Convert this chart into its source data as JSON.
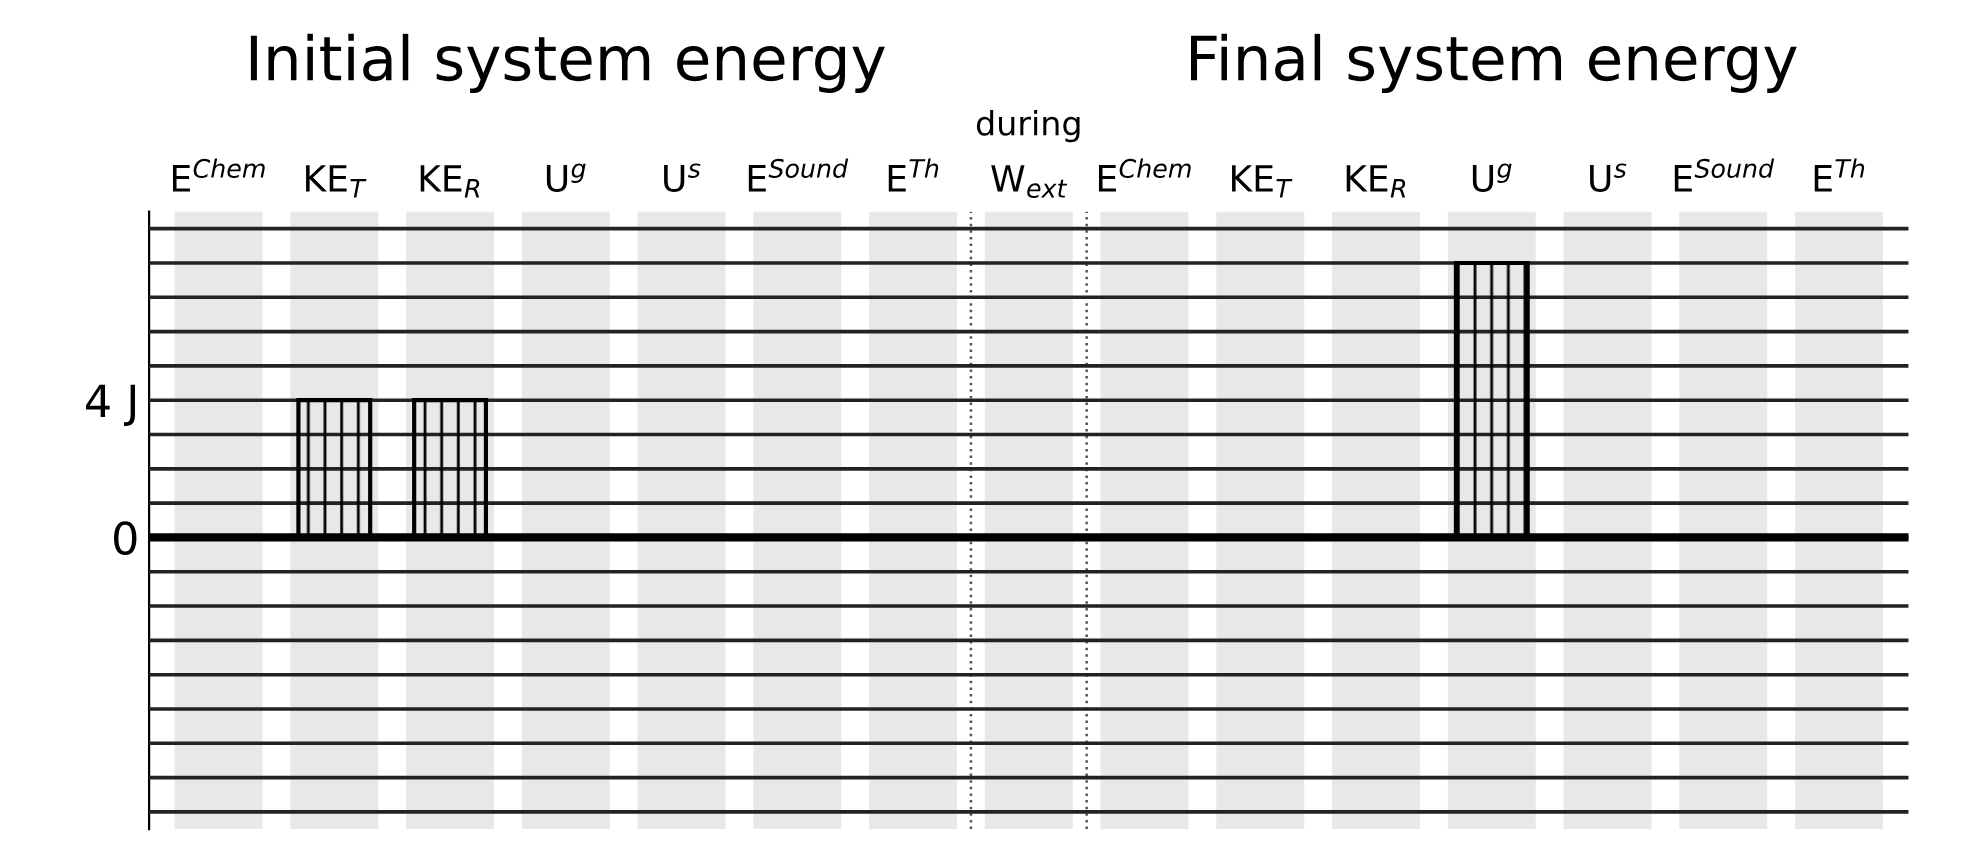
{
  "chart_data": {
    "type": "bar",
    "categories": [
      "E$^{Chem}$",
      "KE$_{T}$",
      "KE$_{R}$",
      "U$^{g}$",
      "U$^{s}$",
      "E$^{Sound}$",
      "E$^{Th}$",
      "W$_{ext}$",
      "E$^{Chem}$",
      "KE$_{T}$",
      "KE$_{R}$",
      "U$^{g}$",
      "U$^{s}$",
      "E$^{Sound}$",
      "E$^{Th}$"
    ],
    "values": [
      0,
      4,
      4,
      0,
      0,
      0,
      0,
      0,
      0,
      0,
      0,
      8,
      0,
      0,
      0
    ],
    "color": "#000000",
    "ylim": [
      -8.5,
      9.5
    ],
    "yticks": [
      {
        "value": -8,
        "label": null
      },
      {
        "value": -7,
        "label": null
      },
      {
        "value": -6,
        "label": null
      },
      {
        "value": -5,
        "label": null
      },
      {
        "value": -4,
        "label": null
      },
      {
        "value": -3,
        "label": null
      },
      {
        "value": -2,
        "label": null
      },
      {
        "value": -1,
        "label": null
      },
      0,
      {
        "value": 1,
        "label": null
      },
      {
        "value": 2,
        "label": null
      },
      {
        "value": 3,
        "label": null
      },
      {
        "value": 4,
        "label": "4 J"
      },
      {
        "value": 5,
        "label": null
      },
      {
        "value": 6,
        "label": null
      },
      {
        "value": 7,
        "label": null
      },
      {
        "value": 8,
        "label": null
      },
      {
        "value": 9,
        "label": null
      }
    ],
    "grid": "y",
    "annotations": [
      "Initial system energy",
      "Final system energy",
      "during"
    ]
  }
}
